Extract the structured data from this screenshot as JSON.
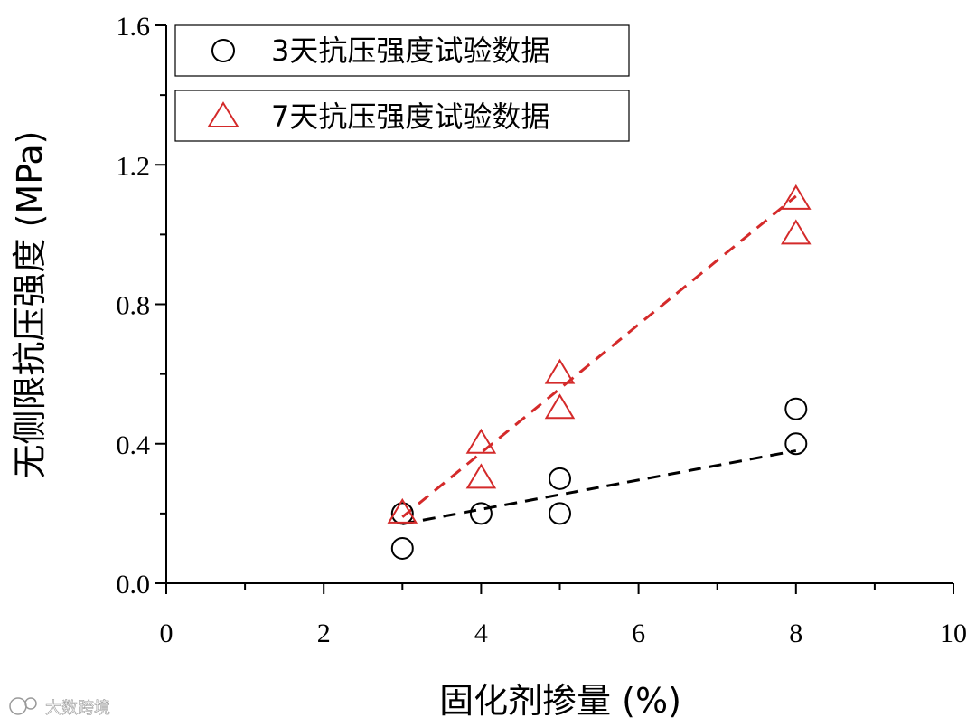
{
  "chart_data": {
    "type": "scatter",
    "title": "",
    "xlabel": "固化剂掺量 (%)",
    "ylabel": "无侧限抗压强度 (MPa)",
    "xlim": [
      0,
      10
    ],
    "ylim": [
      0.0,
      1.6
    ],
    "x_ticks": [
      "0",
      "2",
      "4",
      "6",
      "8",
      "10"
    ],
    "y_ticks": [
      "0.0",
      "0.4",
      "0.8",
      "1.2",
      "1.6"
    ],
    "grid": false,
    "legend_position": "top-left",
    "series": [
      {
        "name": "3天抗压强度试验数据",
        "marker": "circle",
        "color": "#000000",
        "x": [
          3,
          3,
          4,
          5,
          5,
          8,
          8
        ],
        "y": [
          0.2,
          0.1,
          0.2,
          0.3,
          0.2,
          0.5,
          0.4
        ],
        "fit_line": {
          "x": [
            3,
            8
          ],
          "y": [
            0.17,
            0.38
          ]
        }
      },
      {
        "name": "7天抗压强度试验数据",
        "marker": "triangle",
        "color": "#d42a2a",
        "x": [
          3,
          4,
          4,
          5,
          5,
          8,
          8
        ],
        "y": [
          0.2,
          0.4,
          0.3,
          0.6,
          0.5,
          1.1,
          1.0
        ],
        "fit_line": {
          "x": [
            3,
            8
          ],
          "y": [
            0.19,
            1.11
          ]
        }
      }
    ]
  },
  "watermark": {
    "text": "大数跨境"
  }
}
